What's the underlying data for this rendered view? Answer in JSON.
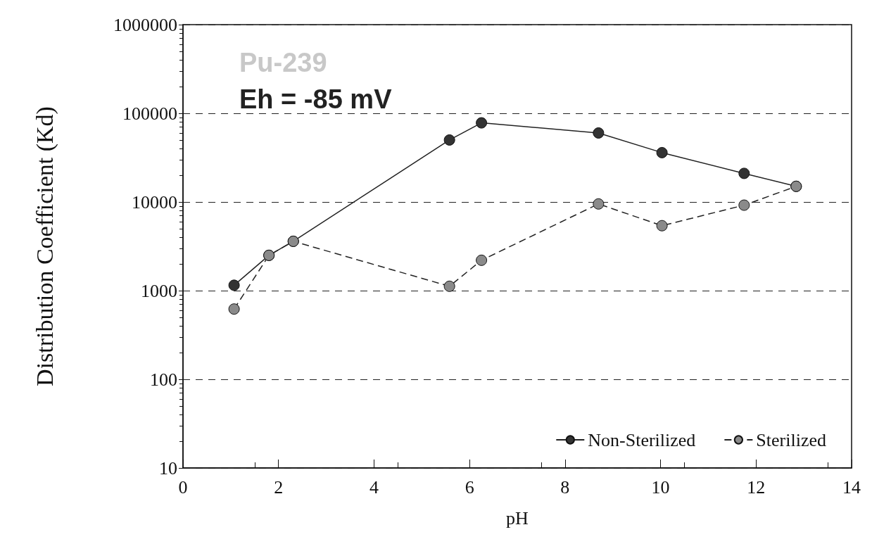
{
  "chart_data": {
    "type": "line",
    "xlabel": "pH",
    "ylabel": "Distribution Coefficient (Kd)",
    "annotations": [
      "Pu-239",
      "Eh = -85 mV"
    ],
    "series": [
      {
        "name": "Non-Sterilized",
        "color": "#333333",
        "line_style": "solid",
        "x": [
          1.07,
          1.8,
          2.31,
          5.58,
          6.25,
          8.7,
          10.03,
          11.75,
          12.84
        ],
        "values": [
          1150,
          2500,
          3600,
          50000,
          78000,
          60000,
          36000,
          21000,
          15000
        ]
      },
      {
        "name": "Sterilized",
        "color": "#8a8a8a",
        "line_style": "dashed",
        "x": [
          1.07,
          1.8,
          2.31,
          5.58,
          6.25,
          8.7,
          10.03,
          11.75,
          12.84
        ],
        "values": [
          620,
          2500,
          3600,
          1120,
          2200,
          9500,
          5400,
          9200,
          15000
        ]
      }
    ],
    "xlim": [
      0,
      14
    ],
    "xticks": [
      0,
      2,
      4,
      6,
      8,
      10,
      12,
      14
    ],
    "ylim": [
      10,
      1000000
    ],
    "yticks": [
      10,
      100,
      1000,
      10000,
      100000,
      1000000
    ],
    "log": "y",
    "grid": "y",
    "legend": "bottom right",
    "marker": "circle"
  }
}
